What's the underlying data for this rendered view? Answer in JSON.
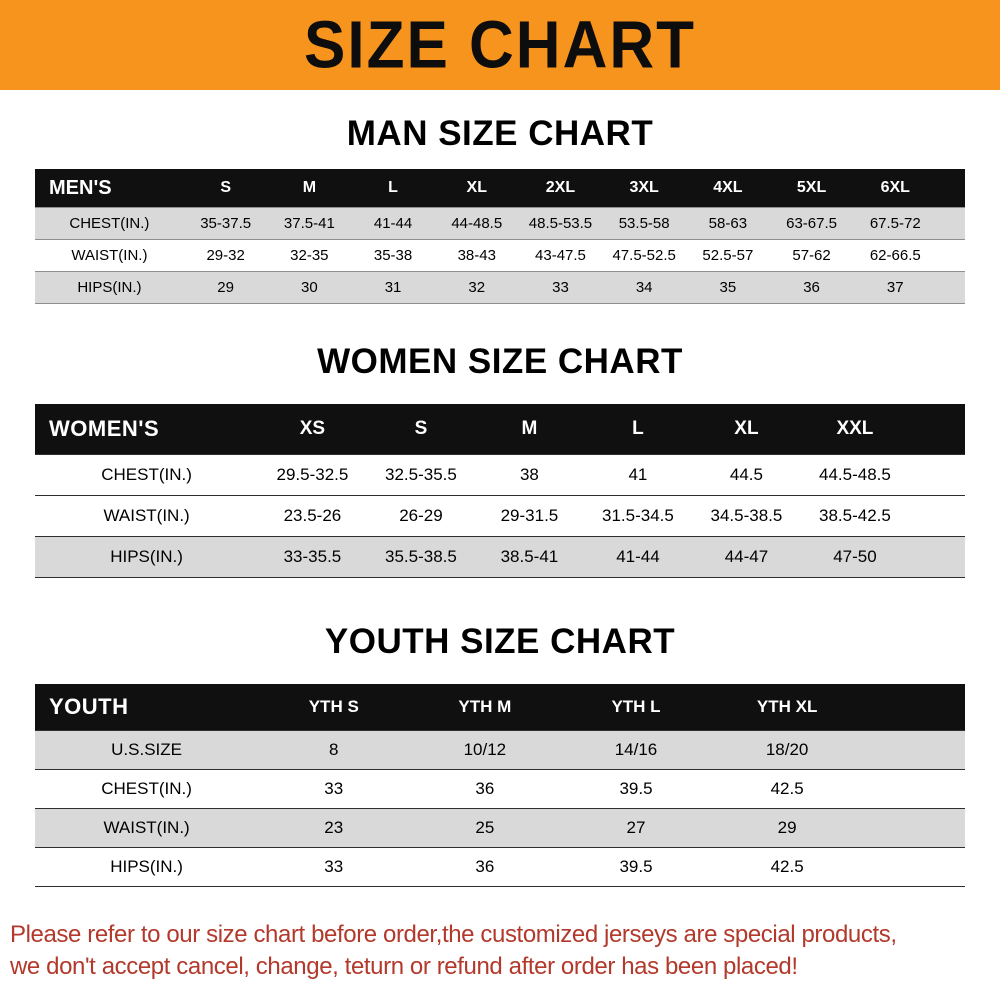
{
  "banner": {
    "title": "SIZE CHART"
  },
  "sections": [
    {
      "heading": "MAN SIZE CHART",
      "table": {
        "name": "MEN'S",
        "columns": [
          "S",
          "M",
          "L",
          "XL",
          "2XL",
          "3XL",
          "4XL",
          "5XL",
          "6XL"
        ],
        "rows": [
          {
            "label": "CHEST(IN.)",
            "values": [
              "35-37.5",
              "37.5-41",
              "41-44",
              "44-48.5",
              "48.5-53.5",
              "53.5-58",
              "58-63",
              "63-67.5",
              "67.5-72"
            ]
          },
          {
            "label": "WAIST(IN.)",
            "values": [
              "29-32",
              "32-35",
              "35-38",
              "38-43",
              "43-47.5",
              "47.5-52.5",
              "52.5-57",
              "57-62",
              "62-66.5"
            ]
          },
          {
            "label": "HIPS(IN.)",
            "values": [
              "29",
              "30",
              "31",
              "32",
              "33",
              "34",
              "35",
              "36",
              "37"
            ]
          }
        ]
      }
    },
    {
      "heading": "WOMEN SIZE CHART",
      "table": {
        "name": "WOMEN'S",
        "columns": [
          "XS",
          "S",
          "M",
          "L",
          "XL",
          "XXL"
        ],
        "rows": [
          {
            "label": "CHEST(IN.)",
            "values": [
              "29.5-32.5",
              "32.5-35.5",
              "38",
              "41",
              "44.5",
              "44.5-48.5"
            ]
          },
          {
            "label": "WAIST(IN.)",
            "values": [
              "23.5-26",
              "26-29",
              "29-31.5",
              "31.5-34.5",
              "34.5-38.5",
              "38.5-42.5"
            ]
          },
          {
            "label": "HIPS(IN.)",
            "values": [
              "33-35.5",
              "35.5-38.5",
              "38.5-41",
              "41-44",
              "44-47",
              "47-50"
            ]
          }
        ]
      }
    },
    {
      "heading": "YOUTH SIZE CHART",
      "table": {
        "name": "YOUTH",
        "columns": [
          "YTH S",
          "YTH M",
          "YTH L",
          "YTH XL"
        ],
        "rows": [
          {
            "label": "U.S.SIZE",
            "values": [
              "8",
              "10/12",
              "14/16",
              "18/20"
            ]
          },
          {
            "label": "CHEST(IN.)",
            "values": [
              "33",
              "36",
              "39.5",
              "42.5"
            ]
          },
          {
            "label": "WAIST(IN.)",
            "values": [
              "23",
              "25",
              "27",
              "29"
            ]
          },
          {
            "label": "HIPS(IN.)",
            "values": [
              "33",
              "36",
              "39.5",
              "42.5"
            ]
          }
        ]
      }
    }
  ],
  "footer": {
    "lines": [
      "Please refer to our size chart before order,the customized jerseys are special products,",
      "we don't accept cancel, change, teturn or refund after order has been placed!"
    ]
  },
  "colors": {
    "banner_bg": "#F7941D",
    "table_header_bg": "#101010",
    "row_shade": "#D9D9D9",
    "footer_text": "#B2392B"
  }
}
